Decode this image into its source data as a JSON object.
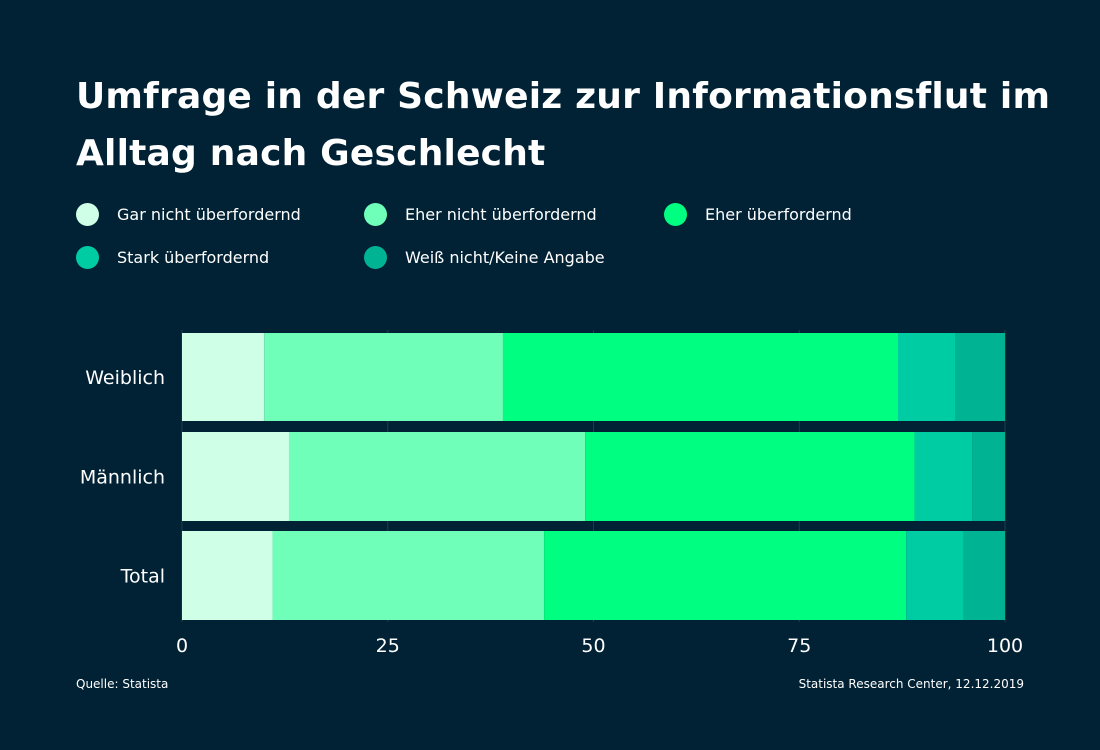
{
  "title": "Umfrage in der Schweiz zur Informationsflut im Alltag nach Geschlecht",
  "footer": {
    "source": "Quelle: Statista",
    "credit": "Statista Research Center, 12.12.2019"
  },
  "colors": {
    "background": "#002234",
    "grid": "#1d3e4d"
  },
  "chart_data": {
    "type": "bar",
    "orientation": "horizontal",
    "stacked": true,
    "title": "Umfrage in der Schweiz zur Informationsflut im Alltag nach Geschlecht",
    "categories": [
      "Weiblich",
      "Männlich",
      "Total"
    ],
    "xlim": [
      0,
      100
    ],
    "xticks": [
      "0",
      "25",
      "50",
      "75",
      "100"
    ],
    "xlabel": "",
    "ylabel": "",
    "grid": true,
    "legend_position": "top",
    "series": [
      {
        "name": "Gar nicht überfordernd",
        "color": "#cfffe6",
        "values": [
          10,
          13,
          11
        ]
      },
      {
        "name": "Eher nicht überfordernd",
        "color": "#70ffb8",
        "values": [
          29,
          36,
          33
        ]
      },
      {
        "name": "Eher überfordernd",
        "color": "#00ff80",
        "values": [
          48,
          40,
          44
        ]
      },
      {
        "name": "Stark überfordernd",
        "color": "#00cca3",
        "values": [
          7,
          7,
          7
        ]
      },
      {
        "name": "Weiß nicht/Keine Angabe",
        "color": "#00b393",
        "values": [
          6,
          4,
          5
        ]
      }
    ]
  }
}
